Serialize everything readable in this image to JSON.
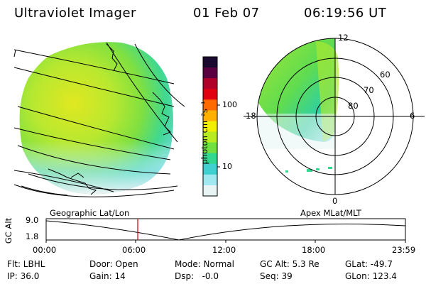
{
  "header": {
    "title": "Ultraviolet Imager",
    "date": "01 Feb 07",
    "time": "06:19:56 UT"
  },
  "colorbar": {
    "unit_label": "photon cm⁻²s⁻¹",
    "scale": "log",
    "ticks": [
      "100",
      "10"
    ],
    "colors": [
      "#1a0a30",
      "#5a0040",
      "#b0002a",
      "#e00010",
      "#ff6a00",
      "#ffb000",
      "#f0f000",
      "#b8ec20",
      "#70e040",
      "#30d890",
      "#40d0d0",
      "#a0e8f0",
      "#e8f4f4"
    ]
  },
  "map_labels": {
    "left": "Geographic Lat/Lon",
    "right": "Apex MLat/MLT"
  },
  "polar": {
    "mlt_labels": {
      "top": "12",
      "left": "18",
      "right": "6",
      "bottom": "0"
    },
    "lat_labels": [
      "60",
      "70",
      "80"
    ]
  },
  "altitude_plot": {
    "y_title": "GC Alt",
    "y_ticks": [
      "9.0",
      "1.8"
    ],
    "x_ticks": [
      "00:00",
      "06:00",
      "12:00",
      "18:00",
      "23:59"
    ],
    "marker_time": "06:19:56"
  },
  "status": {
    "row1": {
      "flt": "Flt: LBHL",
      "door": "Door: Open",
      "mode": "Mode: Normal",
      "gcalt": "GC Alt: 5.3 Re",
      "glat": "GLat: -49.7"
    },
    "row2": {
      "ip": "IP: 36.0",
      "gain": "Gain: 14",
      "dsp": "Dsp:   -0.0",
      "seq": "Seq: 39",
      "glon": "GLon: 123.4"
    }
  }
}
